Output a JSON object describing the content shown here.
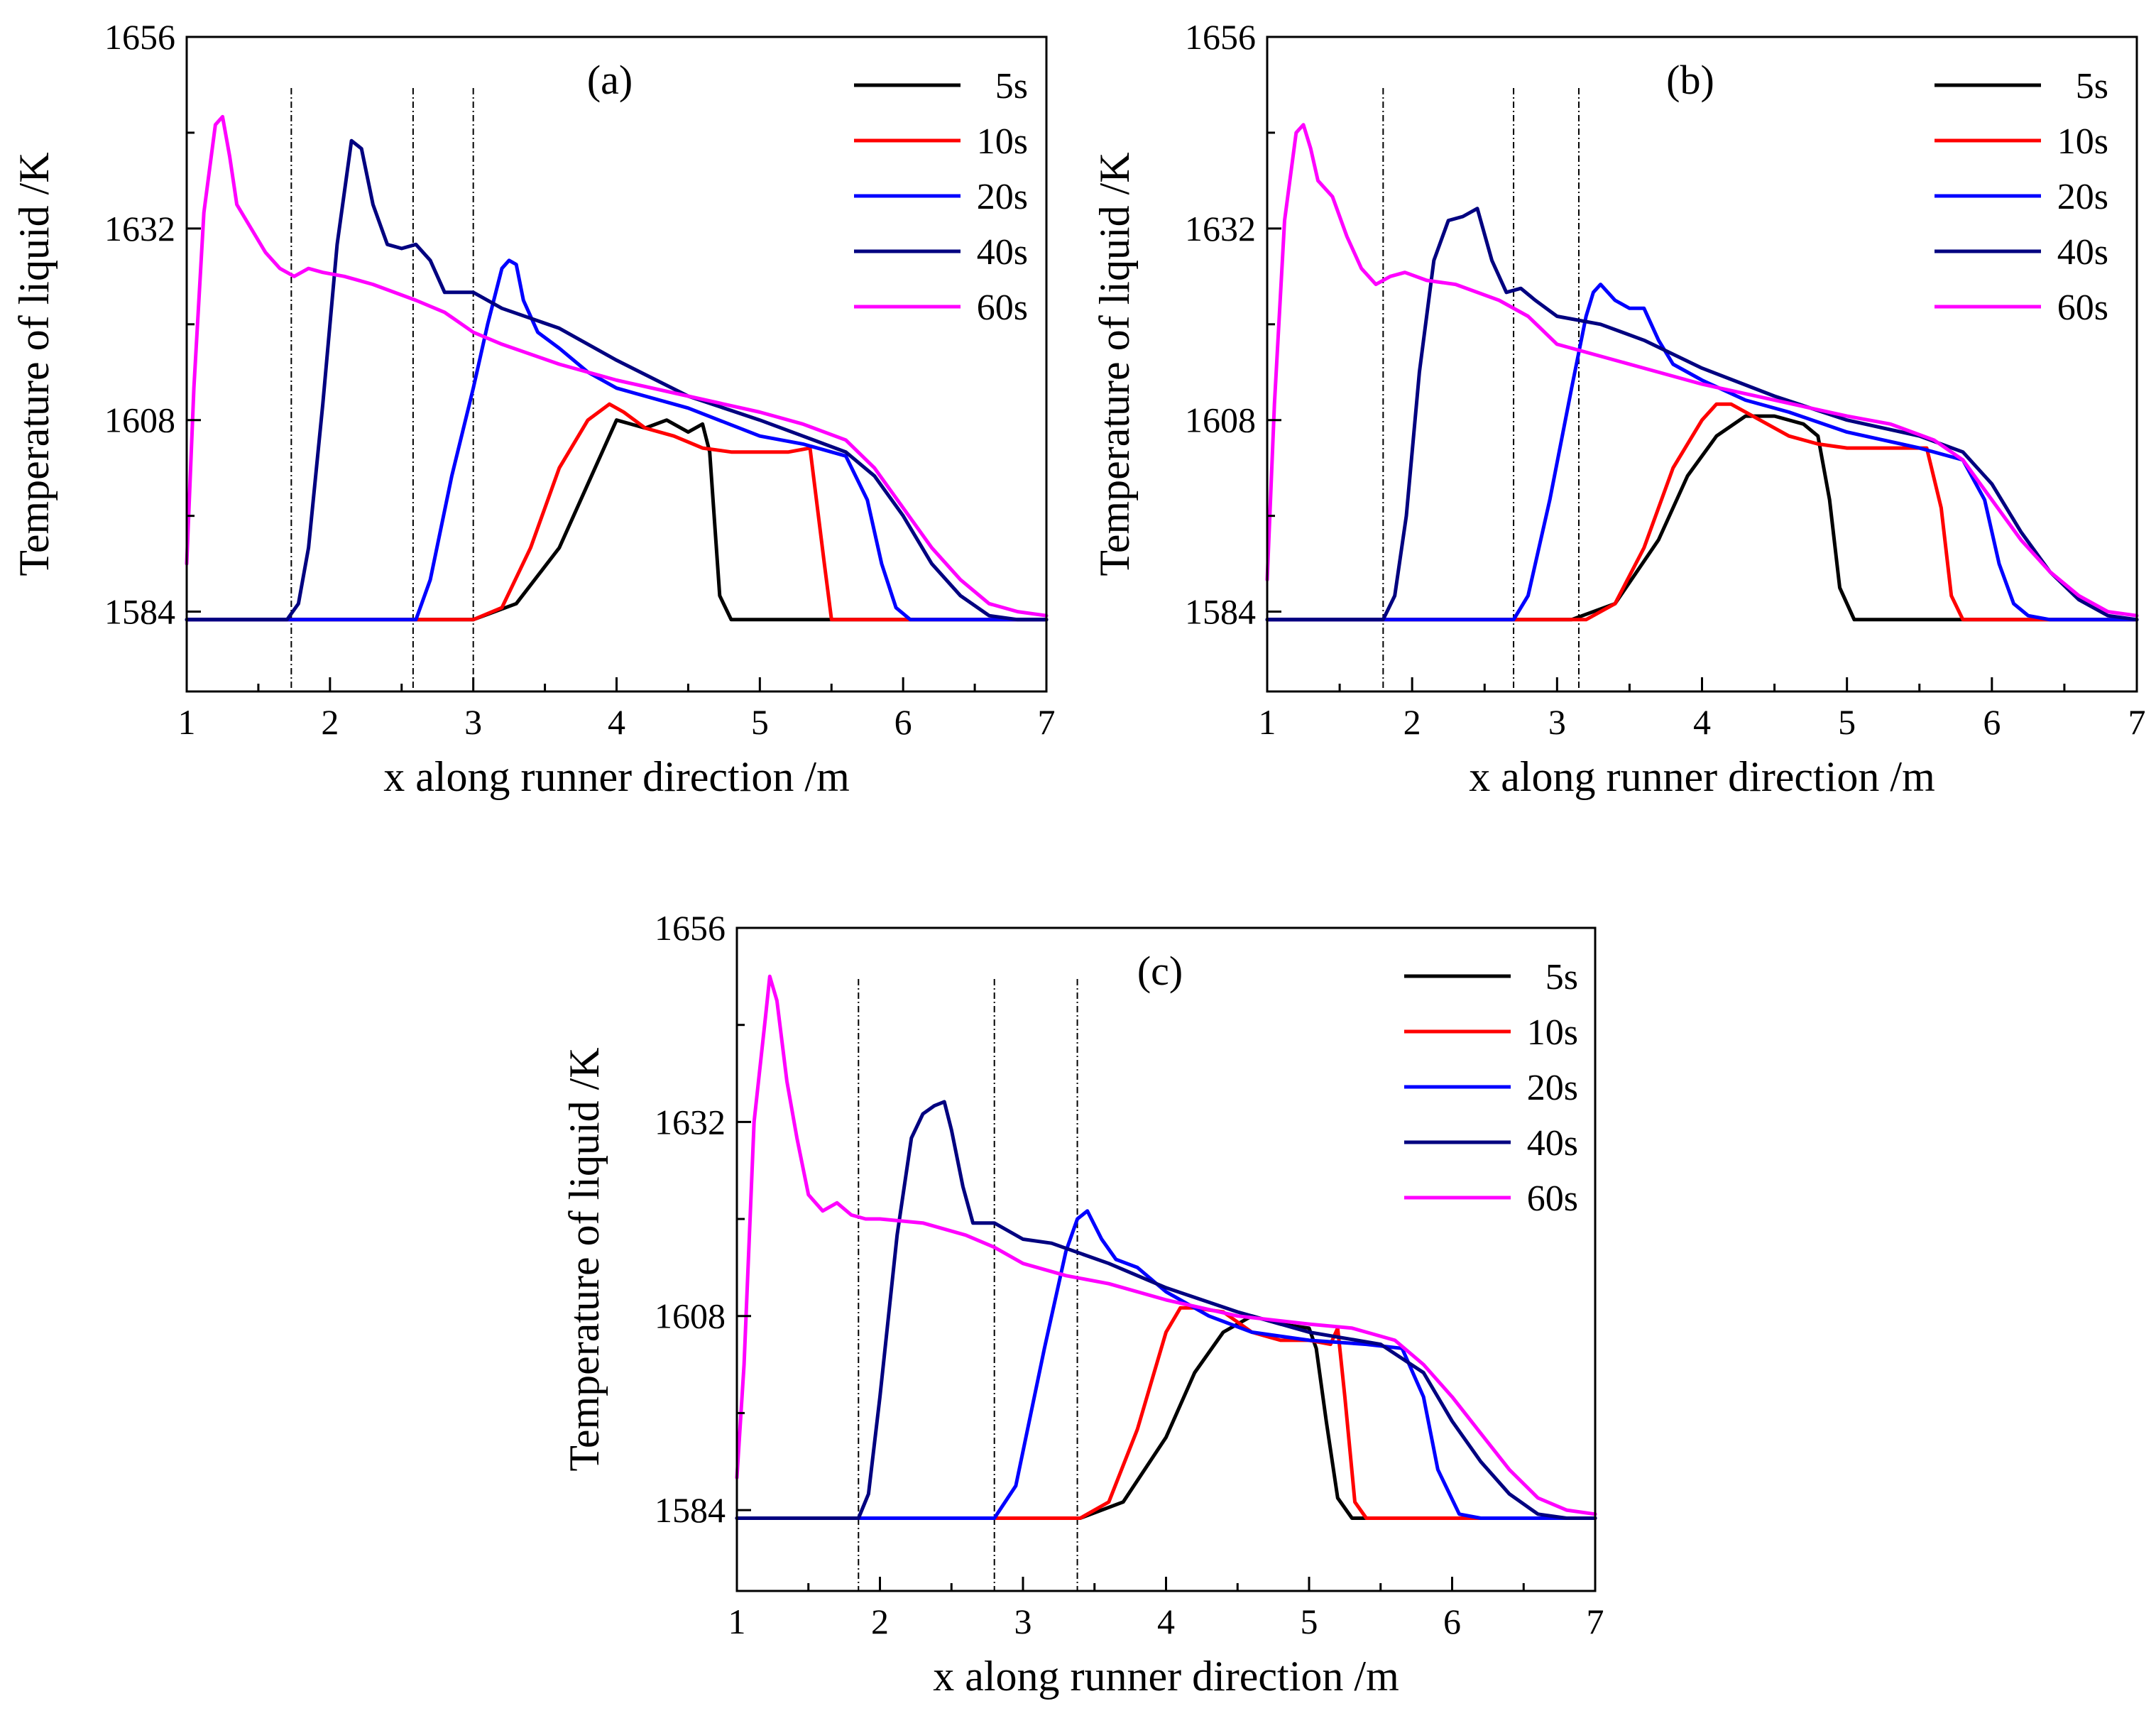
{
  "colors": {
    "5s": "#000000",
    "10s": "#ff0000",
    "20s": "#0000ff",
    "40s": "#000080",
    "60s": "#ff00ff",
    "axis": "#000000"
  },
  "chart_data": [
    {
      "type": "line",
      "title": "(a)",
      "xlabel": "x along runner direction /m",
      "ylabel": "Temperature of liquid /K",
      "xlim": [
        1,
        7
      ],
      "ylim": [
        1574,
        1656
      ],
      "xticks": [
        "1",
        "2",
        "3",
        "4",
        "5",
        "6",
        "7"
      ],
      "yticks": [
        "1584",
        "1608",
        "1632",
        "1656"
      ],
      "ytick_values": [
        1584,
        1608,
        1632,
        1656
      ],
      "legend_position": "top-right",
      "vlines": [
        1.73,
        2.58,
        3.0
      ],
      "series": [
        {
          "name": "5s",
          "colorKey": "5s",
          "x": [
            1.0,
            3.0,
            3.3,
            3.6,
            3.8,
            4.0,
            4.2,
            4.35,
            4.5,
            4.6,
            4.65,
            4.72,
            4.8,
            4.88,
            7.0
          ],
          "y": [
            1583,
            1583,
            1585,
            1592,
            1600,
            1608,
            1607,
            1608,
            1606.5,
            1607.5,
            1604,
            1586,
            1583,
            1583,
            1583
          ]
        },
        {
          "name": "10s",
          "colorKey": "10s",
          "x": [
            1.0,
            3.0,
            3.2,
            3.4,
            3.6,
            3.8,
            3.95,
            4.05,
            4.2,
            4.4,
            4.6,
            4.8,
            5.0,
            5.2,
            5.35,
            5.45,
            5.5,
            5.6,
            7.0
          ],
          "y": [
            1583,
            1583,
            1584.5,
            1592,
            1602,
            1608,
            1610,
            1609,
            1607,
            1606,
            1604.5,
            1604,
            1604,
            1604,
            1604.5,
            1590,
            1583,
            1583,
            1583
          ]
        },
        {
          "name": "20s",
          "colorKey": "20s",
          "x": [
            1.0,
            2.6,
            2.7,
            2.85,
            3.0,
            3.1,
            3.2,
            3.25,
            3.3,
            3.35,
            3.45,
            3.6,
            3.8,
            4.0,
            4.2,
            4.5,
            5.0,
            5.3,
            5.6,
            5.75,
            5.85,
            5.95,
            6.05,
            6.2,
            7.0
          ],
          "y": [
            1583,
            1583,
            1588,
            1601,
            1612,
            1620,
            1627,
            1628,
            1627.5,
            1623,
            1619,
            1617,
            1614,
            1612,
            1611,
            1609.5,
            1606,
            1605,
            1603.5,
            1598,
            1590,
            1584.5,
            1583,
            1583,
            1583
          ]
        },
        {
          "name": "40s",
          "colorKey": "40s",
          "x": [
            1.0,
            1.7,
            1.78,
            1.85,
            1.95,
            2.05,
            2.15,
            2.22,
            2.3,
            2.4,
            2.5,
            2.6,
            2.7,
            2.8,
            3.0,
            3.2,
            3.6,
            4.0,
            4.5,
            5.0,
            5.3,
            5.6,
            5.8,
            6.0,
            6.2,
            6.4,
            6.6,
            6.8,
            7.0
          ],
          "y": [
            1583,
            1583,
            1585,
            1592,
            1610,
            1630,
            1643,
            1642,
            1635,
            1630,
            1629.5,
            1630,
            1628,
            1624,
            1624,
            1622,
            1619.5,
            1615.5,
            1611,
            1608,
            1606,
            1604,
            1601,
            1596,
            1590,
            1586,
            1583.5,
            1583,
            1583
          ]
        },
        {
          "name": "60s",
          "colorKey": "60s",
          "x": [
            1.0,
            1.05,
            1.12,
            1.2,
            1.25,
            1.3,
            1.35,
            1.45,
            1.55,
            1.65,
            1.75,
            1.85,
            1.95,
            2.1,
            2.3,
            2.6,
            2.8,
            3.0,
            3.2,
            3.6,
            4.0,
            4.5,
            5.0,
            5.3,
            5.6,
            5.8,
            6.0,
            6.2,
            6.4,
            6.6,
            6.8,
            7.0
          ],
          "y": [
            1590,
            1612,
            1634,
            1645,
            1646,
            1641,
            1635,
            1632,
            1629,
            1627,
            1626,
            1627,
            1626.5,
            1626,
            1625,
            1623,
            1621.5,
            1619,
            1617.5,
            1615,
            1613,
            1611,
            1609,
            1607.5,
            1605.5,
            1602,
            1597,
            1592,
            1588,
            1585,
            1584,
            1583.5
          ]
        }
      ]
    },
    {
      "type": "line",
      "title": "(b)",
      "xlabel": "x along runner direction /m",
      "ylabel": "Temperature of liquid /K",
      "xlim": [
        1,
        7
      ],
      "ylim": [
        1574,
        1656
      ],
      "xticks": [
        "1",
        "2",
        "3",
        "4",
        "5",
        "6",
        "7"
      ],
      "yticks": [
        "1584",
        "1608",
        "1632",
        "1656"
      ],
      "ytick_values": [
        1584,
        1608,
        1632,
        1656
      ],
      "legend_position": "top-right",
      "vlines": [
        1.8,
        2.7,
        3.15
      ],
      "series": [
        {
          "name": "5s",
          "colorKey": "5s",
          "x": [
            1.0,
            3.1,
            3.4,
            3.7,
            3.9,
            4.1,
            4.3,
            4.5,
            4.7,
            4.8,
            4.88,
            4.95,
            5.05,
            5.15,
            7.0
          ],
          "y": [
            1583,
            1583,
            1585,
            1593,
            1601,
            1606,
            1608.5,
            1608.5,
            1607.5,
            1606,
            1598,
            1587,
            1583,
            1583,
            1583
          ]
        },
        {
          "name": "10s",
          "colorKey": "10s",
          "x": [
            1.0,
            3.2,
            3.4,
            3.6,
            3.8,
            4.0,
            4.1,
            4.2,
            4.4,
            4.6,
            4.8,
            5.0,
            5.3,
            5.55,
            5.65,
            5.72,
            5.8,
            7.0
          ],
          "y": [
            1583,
            1583,
            1585,
            1592,
            1602,
            1608,
            1610,
            1610,
            1608,
            1606,
            1605,
            1604.5,
            1604.5,
            1604.5,
            1597,
            1586,
            1583,
            1583
          ]
        },
        {
          "name": "20s",
          "colorKey": "20s",
          "x": [
            1.0,
            2.7,
            2.8,
            2.95,
            3.1,
            3.2,
            3.25,
            3.3,
            3.4,
            3.5,
            3.6,
            3.7,
            3.8,
            4.0,
            4.3,
            4.6,
            5.0,
            5.5,
            5.8,
            5.95,
            6.05,
            6.15,
            6.25,
            6.4,
            7.0
          ],
          "y": [
            1583,
            1583,
            1586,
            1598,
            1612,
            1621,
            1624,
            1625,
            1623,
            1622,
            1622,
            1618,
            1615,
            1613,
            1610.5,
            1609,
            1606.5,
            1604.5,
            1603,
            1598,
            1590,
            1585,
            1583.5,
            1583,
            1583
          ]
        },
        {
          "name": "40s",
          "colorKey": "40s",
          "x": [
            1.0,
            1.8,
            1.88,
            1.96,
            2.05,
            2.15,
            2.25,
            2.35,
            2.45,
            2.55,
            2.65,
            2.75,
            2.85,
            3.0,
            3.3,
            3.6,
            4.0,
            4.5,
            5.0,
            5.5,
            5.8,
            6.0,
            6.2,
            6.4,
            6.6,
            6.8,
            7.0
          ],
          "y": [
            1583,
            1583,
            1586,
            1596,
            1614,
            1628,
            1633,
            1633.5,
            1634.5,
            1628,
            1624,
            1624.5,
            1623,
            1621,
            1620,
            1618,
            1614.5,
            1611,
            1608,
            1606,
            1604,
            1600,
            1594,
            1589,
            1585.5,
            1583.5,
            1583
          ]
        },
        {
          "name": "60s",
          "colorKey": "60s",
          "x": [
            1.0,
            1.05,
            1.12,
            1.2,
            1.25,
            1.3,
            1.35,
            1.45,
            1.55,
            1.65,
            1.75,
            1.85,
            1.95,
            2.1,
            2.3,
            2.6,
            2.8,
            3.0,
            3.2,
            3.6,
            4.0,
            4.5,
            5.0,
            5.3,
            5.6,
            5.8,
            6.0,
            6.2,
            6.4,
            6.6,
            6.8,
            7.0
          ],
          "y": [
            1588,
            1610,
            1633,
            1644,
            1645,
            1642,
            1638,
            1636,
            1631,
            1627,
            1625,
            1626,
            1626.5,
            1625.5,
            1625,
            1623,
            1621,
            1617.5,
            1616.5,
            1614.5,
            1612.5,
            1610.5,
            1608.5,
            1607.5,
            1605.5,
            1603,
            1598,
            1593,
            1589,
            1586,
            1584,
            1583.5
          ]
        }
      ]
    },
    {
      "type": "line",
      "title": "(c)",
      "xlabel": "x along runner direction /m",
      "ylabel": "Temperature of liquid /K",
      "xlim": [
        1,
        7
      ],
      "ylim": [
        1574,
        1656
      ],
      "xticks": [
        "1",
        "2",
        "3",
        "4",
        "5",
        "6",
        "7"
      ],
      "yticks": [
        "1584",
        "1608",
        "1632",
        "1656"
      ],
      "ytick_values": [
        1584,
        1608,
        1632,
        1656
      ],
      "legend_position": "top-right",
      "vlines": [
        1.85,
        2.8,
        3.38
      ],
      "series": [
        {
          "name": "5s",
          "colorKey": "5s",
          "x": [
            1.0,
            3.4,
            3.7,
            4.0,
            4.2,
            4.4,
            4.6,
            4.8,
            5.0,
            5.05,
            5.12,
            5.2,
            5.3,
            7.0
          ],
          "y": [
            1583,
            1583,
            1585,
            1593,
            1601,
            1606,
            1608,
            1607,
            1606.5,
            1604,
            1595,
            1585.5,
            1583,
            1583
          ]
        },
        {
          "name": "10s",
          "colorKey": "10s",
          "x": [
            1.0,
            3.4,
            3.6,
            3.8,
            4.0,
            4.1,
            4.2,
            4.4,
            4.6,
            4.8,
            5.0,
            5.15,
            5.2,
            5.25,
            5.32,
            5.4,
            7.0
          ],
          "y": [
            1583,
            1583,
            1585,
            1594,
            1606,
            1609,
            1609,
            1608.5,
            1606,
            1605,
            1605,
            1604.5,
            1606.5,
            1598,
            1585,
            1583,
            1583
          ]
        },
        {
          "name": "20s",
          "colorKey": "20s",
          "x": [
            1.0,
            2.8,
            2.95,
            3.15,
            3.3,
            3.38,
            3.45,
            3.55,
            3.65,
            3.8,
            4.0,
            4.3,
            4.6,
            5.0,
            5.4,
            5.65,
            5.8,
            5.9,
            6.05,
            6.2,
            7.0
          ],
          "y": [
            1583,
            1583,
            1587,
            1604,
            1616,
            1620,
            1621,
            1617.5,
            1615,
            1614,
            1611,
            1608,
            1606,
            1605,
            1604.5,
            1604,
            1598,
            1589,
            1583.5,
            1583,
            1583
          ]
        },
        {
          "name": "40s",
          "colorKey": "40s",
          "x": [
            1.0,
            1.85,
            1.92,
            2.0,
            2.12,
            2.22,
            2.3,
            2.38,
            2.45,
            2.5,
            2.58,
            2.65,
            2.72,
            2.8,
            3.0,
            3.2,
            3.6,
            4.0,
            4.5,
            5.0,
            5.5,
            5.8,
            6.0,
            6.2,
            6.4,
            6.6,
            6.8,
            7.0
          ],
          "y": [
            1583,
            1583,
            1586,
            1598,
            1618,
            1630,
            1633,
            1634,
            1634.5,
            1631,
            1624,
            1619.5,
            1619.5,
            1619.5,
            1617.5,
            1617,
            1614.5,
            1611.5,
            1608.5,
            1606,
            1604.5,
            1601,
            1595,
            1590,
            1586,
            1583.5,
            1583,
            1583
          ]
        },
        {
          "name": "60s",
          "colorKey": "60s",
          "x": [
            1.0,
            1.05,
            1.12,
            1.2,
            1.23,
            1.28,
            1.35,
            1.42,
            1.5,
            1.6,
            1.7,
            1.8,
            1.9,
            2.0,
            2.3,
            2.6,
            2.8,
            3.0,
            3.3,
            3.6,
            4.0,
            4.5,
            5.0,
            5.3,
            5.6,
            5.8,
            6.0,
            6.2,
            6.4,
            6.6,
            6.8,
            7.0
          ],
          "y": [
            1588,
            1602,
            1632,
            1645,
            1650,
            1647,
            1637,
            1630,
            1623,
            1621,
            1622,
            1620.5,
            1620,
            1620,
            1619.5,
            1618,
            1616.5,
            1614.5,
            1613,
            1612,
            1610,
            1608,
            1607,
            1606.5,
            1605,
            1602,
            1598,
            1593.5,
            1589,
            1585.5,
            1584,
            1583.5
          ]
        }
      ]
    }
  ]
}
